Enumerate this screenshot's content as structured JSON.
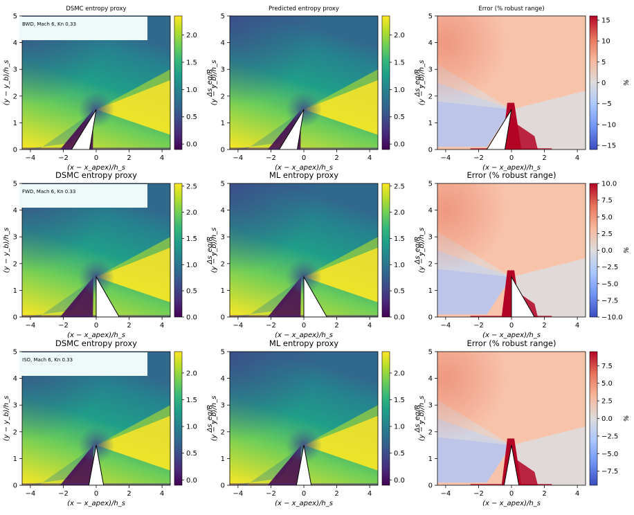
{
  "colors": {
    "viridis": [
      "#440154",
      "#482878",
      "#3e4989",
      "#31688e",
      "#26828e",
      "#1f9e89",
      "#35b779",
      "#6ece58",
      "#b5de2b",
      "#fde725"
    ],
    "coolwarm": [
      "#3b4cc0",
      "#6f92f3",
      "#aac7fd",
      "#dddcdc",
      "#f7b89c",
      "#e7745b",
      "#b40426"
    ],
    "case_label_bg": "#eefafa"
  },
  "chart_data": [
    {
      "type": "heatmap",
      "row": 0,
      "col": 0,
      "title": "DSMC entropy proxy",
      "title_size": "small",
      "case_label": "BWD, Mach 6, Kn 0.33",
      "geometry": "bwd",
      "xlabel": "(x − x_apex)/h_s",
      "ylabel": "(y − y_b)/h_s",
      "xlim": [
        -4.5,
        4.5
      ],
      "ylim": [
        0,
        5
      ],
      "xticks": [
        "−4",
        "−2",
        "0",
        "2",
        "4"
      ],
      "yticks": [
        "0",
        "1",
        "2",
        "3",
        "4",
        "5"
      ],
      "colorbar": {
        "cmap": "viridis",
        "label": "Δs_eq/R",
        "range": [
          -0.1,
          2.35
        ],
        "ticks": [
          0.0,
          0.5,
          1.0,
          1.5,
          2.0
        ],
        "tick_labels": [
          "0.0",
          "0.5",
          "1.0",
          "1.5",
          "2.0"
        ]
      }
    },
    {
      "type": "heatmap",
      "row": 0,
      "col": 1,
      "title": "Predicted entropy proxy",
      "title_size": "small",
      "case_label": "",
      "geometry": "bwd",
      "xlabel": "(x − x_apex)/h_s",
      "ylabel": "(y − y_b)/h_s",
      "xlim": [
        -4.5,
        4.5
      ],
      "ylim": [
        0,
        5
      ],
      "xticks": [
        "−4",
        "−2",
        "0",
        "2",
        "4"
      ],
      "yticks": [
        "0",
        "1",
        "2",
        "3",
        "4",
        "5"
      ],
      "colorbar": {
        "cmap": "viridis",
        "label": "Δs_eq/R",
        "range": [
          -0.1,
          2.35
        ],
        "ticks": [
          0.0,
          0.5,
          1.0,
          1.5,
          2.0
        ],
        "tick_labels": [
          "0.0",
          "0.5",
          "1.0",
          "1.5",
          "2.0"
        ]
      }
    },
    {
      "type": "heatmap",
      "row": 0,
      "col": 2,
      "title": "Error (% robust range)",
      "title_size": "small",
      "case_label": "",
      "geometry": "bwd",
      "error": true,
      "xlabel": "(x − x_apex)/h_s",
      "ylabel": "(y − y_b)/h_s",
      "xlim": [
        -4.5,
        4.5
      ],
      "ylim": [
        0,
        5
      ],
      "xticks": [
        "−4",
        "−2",
        "0",
        "2",
        "4"
      ],
      "yticks": [
        "0",
        "1",
        "2",
        "3",
        "4",
        "5"
      ],
      "colorbar": {
        "cmap": "coolwarm",
        "label": "%",
        "range": [
          -16,
          16
        ],
        "ticks": [
          -15,
          -10,
          -5,
          0,
          5,
          10,
          15
        ],
        "tick_labels": [
          "−15",
          "−10",
          "−5",
          "0",
          "5",
          "10",
          "15"
        ]
      }
    },
    {
      "type": "heatmap",
      "row": 1,
      "col": 0,
      "title": "DSMC entropy proxy",
      "title_size": "large",
      "case_label": "FWD, Mach 6, Kn 0.33",
      "geometry": "fwd",
      "xlabel": "(x − x_apex)/h_s",
      "ylabel": "(y − y_b)/h_s",
      "xlim": [
        -4.5,
        4.5
      ],
      "ylim": [
        0,
        5
      ],
      "xticks": [
        "−4",
        "−2",
        "0",
        "2",
        "4"
      ],
      "yticks": [
        "0",
        "1",
        "2",
        "3",
        "4",
        "5"
      ],
      "colorbar": {
        "cmap": "viridis",
        "label": "Δs_eq/R",
        "range": [
          0,
          2.55
        ],
        "ticks": [
          0.0,
          0.5,
          1.0,
          1.5,
          2.0,
          2.5
        ],
        "tick_labels": [
          "0.0",
          "0.5",
          "1.0",
          "1.5",
          "2.0",
          "2.5"
        ]
      }
    },
    {
      "type": "heatmap",
      "row": 1,
      "col": 1,
      "title": "ML entropy proxy",
      "title_size": "large",
      "case_label": "",
      "geometry": "fwd",
      "xlabel": "(x − x_apex)/h_s",
      "ylabel": "(y − y_b)/h_s",
      "xlim": [
        -4.5,
        4.5
      ],
      "ylim": [
        0,
        5
      ],
      "xticks": [
        "−4",
        "−2",
        "0",
        "2",
        "4"
      ],
      "yticks": [
        "0",
        "1",
        "2",
        "3",
        "4",
        "5"
      ],
      "colorbar": {
        "cmap": "viridis",
        "label": "Δs_eq/R",
        "range": [
          0,
          2.55
        ],
        "ticks": [
          0.0,
          0.5,
          1.0,
          1.5,
          2.0,
          2.5
        ],
        "tick_labels": [
          "0.0",
          "0.5",
          "1.0",
          "1.5",
          "2.0",
          "2.5"
        ]
      }
    },
    {
      "type": "heatmap",
      "row": 1,
      "col": 2,
      "title": "Error (% robust range)",
      "title_size": "large",
      "case_label": "",
      "geometry": "fwd",
      "error": true,
      "xlabel": "(x − x_apex)/h_s",
      "ylabel": "(y − y_b)/h_s",
      "xlim": [
        -4.5,
        4.5
      ],
      "ylim": [
        0,
        5
      ],
      "xticks": [
        "−4",
        "−2",
        "0",
        "2",
        "4"
      ],
      "yticks": [
        "0",
        "1",
        "2",
        "3",
        "4",
        "5"
      ],
      "colorbar": {
        "cmap": "coolwarm",
        "label": "%",
        "range": [
          -10,
          10
        ],
        "ticks": [
          -10,
          -7.5,
          -5,
          -2.5,
          0,
          2.5,
          5,
          7.5,
          10
        ],
        "tick_labels": [
          "−10.0",
          "−7.5",
          "−5.0",
          "−2.5",
          "0.0",
          "2.5",
          "5.0",
          "7.5",
          "10.0"
        ]
      }
    },
    {
      "type": "heatmap",
      "row": 2,
      "col": 0,
      "title": "DSMC entropy proxy",
      "title_size": "large",
      "case_label": "ISO, Mach 6, Kn 0.33",
      "geometry": "iso",
      "xlabel": "(x − x_apex)/h_s",
      "ylabel": "(y − y_b)/h_s",
      "xlim": [
        -4.5,
        4.5
      ],
      "ylim": [
        0,
        5
      ],
      "xticks": [
        "−4",
        "−2",
        "0",
        "2",
        "4"
      ],
      "yticks": [
        "0",
        "1",
        "2",
        "3",
        "4",
        "5"
      ],
      "colorbar": {
        "cmap": "viridis",
        "label": "Δs_eq/R",
        "range": [
          -0.1,
          2.4
        ],
        "ticks": [
          0.0,
          0.5,
          1.0,
          1.5,
          2.0
        ],
        "tick_labels": [
          "0.0",
          "0.5",
          "1.0",
          "1.5",
          "2.0"
        ]
      }
    },
    {
      "type": "heatmap",
      "row": 2,
      "col": 1,
      "title": "ML entropy proxy",
      "title_size": "large",
      "case_label": "",
      "geometry": "iso",
      "xlabel": "(x − x_apex)/h_s",
      "ylabel": "(y − y_b)/h_s",
      "xlim": [
        -4.5,
        4.5
      ],
      "ylim": [
        0,
        5
      ],
      "xticks": [
        "−4",
        "−2",
        "0",
        "2",
        "4"
      ],
      "yticks": [
        "0",
        "1",
        "2",
        "3",
        "4",
        "5"
      ],
      "colorbar": {
        "cmap": "viridis",
        "label": "Δs_eq/R",
        "range": [
          -0.1,
          2.4
        ],
        "ticks": [
          0.0,
          0.5,
          1.0,
          1.5,
          2.0
        ],
        "tick_labels": [
          "0.0",
          "0.5",
          "1.0",
          "1.5",
          "2.0"
        ]
      }
    },
    {
      "type": "heatmap",
      "row": 2,
      "col": 2,
      "title": "Error (% robust range)",
      "title_size": "large",
      "case_label": "",
      "geometry": "iso",
      "error": true,
      "xlabel": "(x − x_apex)/h_s",
      "ylabel": "(y − y_b)/h_s",
      "xlim": [
        -4.5,
        4.5
      ],
      "ylim": [
        0,
        5
      ],
      "xticks": [
        "−4",
        "−2",
        "0",
        "2",
        "4"
      ],
      "yticks": [
        "0",
        "1",
        "2",
        "3",
        "4",
        "5"
      ],
      "colorbar": {
        "cmap": "coolwarm",
        "label": "%",
        "range": [
          -9.5,
          9.5
        ],
        "ticks": [
          -7.5,
          -5,
          -2.5,
          0,
          2.5,
          5,
          7.5
        ],
        "tick_labels": [
          "−7.5",
          "−5.0",
          "−2.5",
          "0.0",
          "2.5",
          "5.0",
          "7.5"
        ]
      }
    }
  ]
}
